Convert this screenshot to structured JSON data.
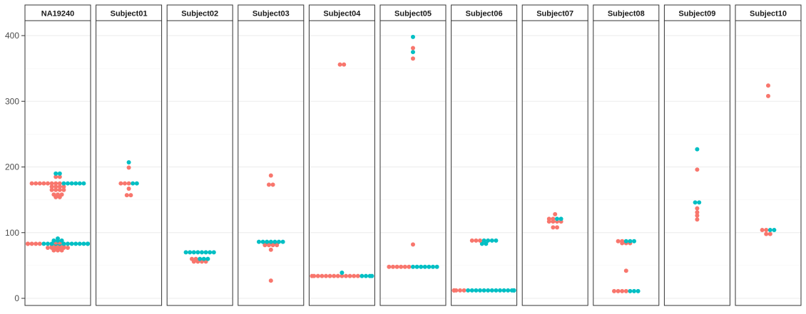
{
  "chart_data": {
    "type": "scatter",
    "subtype": "beeswarm-facets",
    "ylim": [
      -10,
      420
    ],
    "y_ticks": [
      0,
      100,
      200,
      300,
      400
    ],
    "grid": true,
    "legend": "none",
    "colors": {
      "series_a": "#F8766D",
      "series_b": "#00BFC4"
    },
    "panels": [
      {
        "label": "NA19240",
        "points": [
          {
            "y": 190,
            "g": "b",
            "n": 2
          },
          {
            "y": 185,
            "g": "a",
            "n": 2
          },
          {
            "y": 175,
            "g": "a",
            "n": 8
          },
          {
            "y": 175,
            "g": "b",
            "n": 6
          },
          {
            "y": 170,
            "g": "a",
            "n": 4
          },
          {
            "y": 165,
            "g": "a",
            "n": 4
          },
          {
            "y": 158,
            "g": "a",
            "n": 3
          },
          {
            "y": 154,
            "g": "a",
            "n": 2
          },
          {
            "y": 91,
            "g": "b",
            "n": 1
          },
          {
            "y": 88,
            "g": "b",
            "n": 3
          },
          {
            "y": 85,
            "g": "a",
            "n": 2
          },
          {
            "y": 83,
            "g": "a",
            "n": 6
          },
          {
            "y": 83,
            "g": "b",
            "n": 14
          },
          {
            "y": 80,
            "g": "a",
            "n": 4
          },
          {
            "y": 77,
            "g": "a",
            "n": 6
          },
          {
            "y": 73,
            "g": "a",
            "n": 3
          }
        ]
      },
      {
        "label": "Subject01",
        "points": [
          {
            "y": 207,
            "g": "b",
            "n": 1
          },
          {
            "y": 199,
            "g": "a",
            "n": 1
          },
          {
            "y": 175,
            "g": "a",
            "n": 3
          },
          {
            "y": 175,
            "g": "b",
            "n": 2
          },
          {
            "y": 167,
            "g": "a",
            "n": 1
          },
          {
            "y": 157,
            "g": "a",
            "n": 2
          }
        ]
      },
      {
        "label": "Subject02",
        "points": [
          {
            "y": 70,
            "g": "b",
            "n": 8
          },
          {
            "y": 60,
            "g": "a",
            "n": 2
          },
          {
            "y": 60,
            "g": "b",
            "n": 3
          },
          {
            "y": 56,
            "g": "a",
            "n": 4
          }
        ]
      },
      {
        "label": "Subject03",
        "points": [
          {
            "y": 187,
            "g": "a",
            "n": 1
          },
          {
            "y": 173,
            "g": "a",
            "n": 2
          },
          {
            "y": 86,
            "g": "b",
            "n": 7
          },
          {
            "y": 83,
            "g": "a",
            "n": 4
          },
          {
            "y": 81,
            "g": "a",
            "n": 4
          },
          {
            "y": 74,
            "g": "a",
            "n": 1
          },
          {
            "y": 27,
            "g": "a",
            "n": 1
          }
        ]
      },
      {
        "label": "Subject04",
        "points": [
          {
            "y": 356,
            "g": "a",
            "n": 2
          },
          {
            "y": 39,
            "g": "b",
            "n": 1
          },
          {
            "y": 34,
            "g": "a",
            "n": 13
          },
          {
            "y": 34,
            "g": "b",
            "n": 4
          }
        ]
      },
      {
        "label": "Subject05",
        "points": [
          {
            "y": 398,
            "g": "b",
            "n": 1
          },
          {
            "y": 381,
            "g": "a",
            "n": 1
          },
          {
            "y": 375,
            "g": "b",
            "n": 1
          },
          {
            "y": 365,
            "g": "a",
            "n": 1
          },
          {
            "y": 82,
            "g": "a",
            "n": 1
          },
          {
            "y": 48,
            "g": "a",
            "n": 6
          },
          {
            "y": 48,
            "g": "b",
            "n": 7
          }
        ]
      },
      {
        "label": "Subject06",
        "points": [
          {
            "y": 88,
            "g": "a",
            "n": 3
          },
          {
            "y": 88,
            "g": "b",
            "n": 4
          },
          {
            "y": 83,
            "g": "b",
            "n": 2
          },
          {
            "y": 12,
            "g": "a",
            "n": 6
          },
          {
            "y": 12,
            "g": "b",
            "n": 15
          }
        ]
      },
      {
        "label": "Subject07",
        "points": [
          {
            "y": 128,
            "g": "a",
            "n": 1
          },
          {
            "y": 121,
            "g": "a",
            "n": 2
          },
          {
            "y": 121,
            "g": "b",
            "n": 2
          },
          {
            "y": 117,
            "g": "a",
            "n": 4
          },
          {
            "y": 108,
            "g": "a",
            "n": 2
          }
        ]
      },
      {
        "label": "Subject08",
        "points": [
          {
            "y": 87,
            "g": "a",
            "n": 2
          },
          {
            "y": 87,
            "g": "b",
            "n": 3
          },
          {
            "y": 84,
            "g": "a",
            "n": 3
          },
          {
            "y": 42,
            "g": "a",
            "n": 1
          },
          {
            "y": 11,
            "g": "a",
            "n": 4
          },
          {
            "y": 11,
            "g": "b",
            "n": 3
          }
        ]
      },
      {
        "label": "Subject09",
        "points": [
          {
            "y": 227,
            "g": "b",
            "n": 1
          },
          {
            "y": 196,
            "g": "a",
            "n": 1
          },
          {
            "y": 146,
            "g": "b",
            "n": 2
          },
          {
            "y": 137,
            "g": "a",
            "n": 1
          },
          {
            "y": 131,
            "g": "a",
            "n": 1
          },
          {
            "y": 126,
            "g": "a",
            "n": 1
          },
          {
            "y": 120,
            "g": "a",
            "n": 1
          }
        ]
      },
      {
        "label": "Subject10",
        "points": [
          {
            "y": 324,
            "g": "a",
            "n": 1
          },
          {
            "y": 308,
            "g": "a",
            "n": 1
          },
          {
            "y": 104,
            "g": "a",
            "n": 2
          },
          {
            "y": 104,
            "g": "b",
            "n": 2
          },
          {
            "y": 98,
            "g": "a",
            "n": 2
          }
        ]
      }
    ]
  }
}
